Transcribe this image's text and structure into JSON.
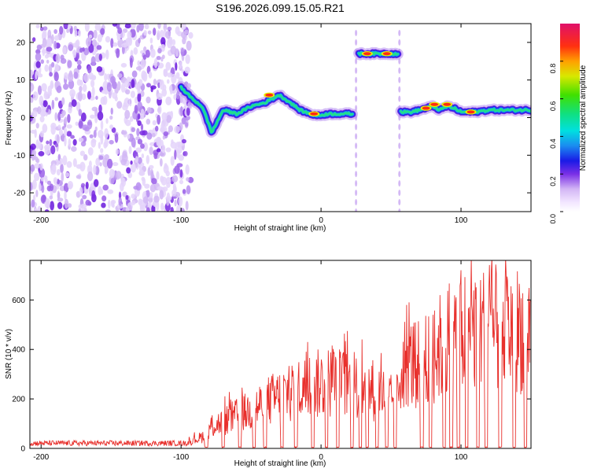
{
  "figure_title": "S196.2026.099.15.05.R21",
  "chart_data": [
    {
      "type": "heatmap",
      "title": "S196.2026.099.15.05.R21",
      "xlabel": "Height of straight line (km)",
      "ylabel": "Frequency (Hz)",
      "xlim": [
        -208,
        150
      ],
      "ylim": [
        -25,
        25
      ],
      "xticks": [
        -200,
        -100,
        0,
        100
      ],
      "xtick_labels": [
        "-200",
        "-100",
        "0",
        "100"
      ],
      "yticks": [
        -20,
        -10,
        0,
        10,
        20
      ],
      "ytick_labels": [
        "-20",
        "-10",
        "0",
        "10",
        "20"
      ],
      "grid": false,
      "noise_region": [
        -208,
        -93
      ],
      "gap_regions": [
        [
          23,
          27
        ],
        [
          55,
          57
        ]
      ],
      "tracks": [
        {
          "name": "main-track-1",
          "x": [
            -100,
            -92,
            -85,
            -82,
            -78,
            -70,
            -60,
            -50,
            -40,
            -30,
            -22,
            -15,
            -8,
            -2,
            5,
            12,
            20,
            23
          ],
          "y": [
            8,
            5,
            3,
            0,
            -4,
            2,
            1,
            3,
            4,
            6,
            4,
            2,
            1,
            0.5,
            1,
            1,
            1,
            1
          ]
        },
        {
          "name": "elevated-track",
          "x": [
            27,
            55
          ],
          "y": [
            17,
            17
          ]
        },
        {
          "name": "main-track-2",
          "x": [
            57,
            65,
            75,
            80,
            85,
            90,
            95,
            100,
            110,
            120,
            130,
            140,
            150
          ],
          "y": [
            1.5,
            1.5,
            2.5,
            3,
            2,
            3,
            2.5,
            1.5,
            1.5,
            2,
            2,
            2,
            2
          ]
        }
      ],
      "colorbar": {
        "label": "Normalized spectral amplitude",
        "range": [
          0,
          1
        ],
        "ticks": [
          0,
          0.2,
          0.4,
          0.6,
          0.8
        ],
        "tick_labels": [
          "0.0",
          "0.2",
          "0.4",
          "0.6",
          "0.8"
        ]
      }
    },
    {
      "type": "line",
      "xlabel": "Height of straight line (km)",
      "ylabel": "SNR (10 * v/v)",
      "xlim": [
        -208,
        150
      ],
      "ylim": [
        0,
        760
      ],
      "xticks": [
        -200,
        -100,
        0,
        100
      ],
      "xtick_labels": [
        "-200",
        "-100",
        "0",
        "100"
      ],
      "yticks": [
        0,
        200,
        400,
        600
      ],
      "ytick_labels": [
        "0",
        "200",
        "400",
        "600"
      ],
      "grid": false,
      "series": [
        {
          "name": "SNR",
          "color": "#e8302c",
          "envelope_x": [
            -208,
            -100,
            -95,
            -85,
            -80,
            -70,
            -60,
            -50,
            -40,
            -30,
            -20,
            -10,
            0,
            10,
            20,
            30,
            40,
            50,
            55,
            58,
            65,
            70,
            80,
            90,
            100,
            110,
            120,
            130,
            140,
            150
          ],
          "envelope_y": [
            20,
            20,
            30,
            60,
            110,
            140,
            170,
            200,
            240,
            270,
            300,
            320,
            340,
            350,
            330,
            320,
            300,
            250,
            300,
            460,
            440,
            430,
            480,
            570,
            610,
            620,
            620,
            620,
            620,
            620
          ],
          "dropout_centers": [
            -82,
            -70,
            -58,
            -48,
            -40,
            -28,
            -18,
            -6,
            4,
            12,
            22,
            28,
            33,
            40,
            47,
            53,
            72,
            78,
            88,
            93,
            98,
            104,
            112,
            118,
            128,
            138,
            146
          ]
        }
      ]
    }
  ]
}
